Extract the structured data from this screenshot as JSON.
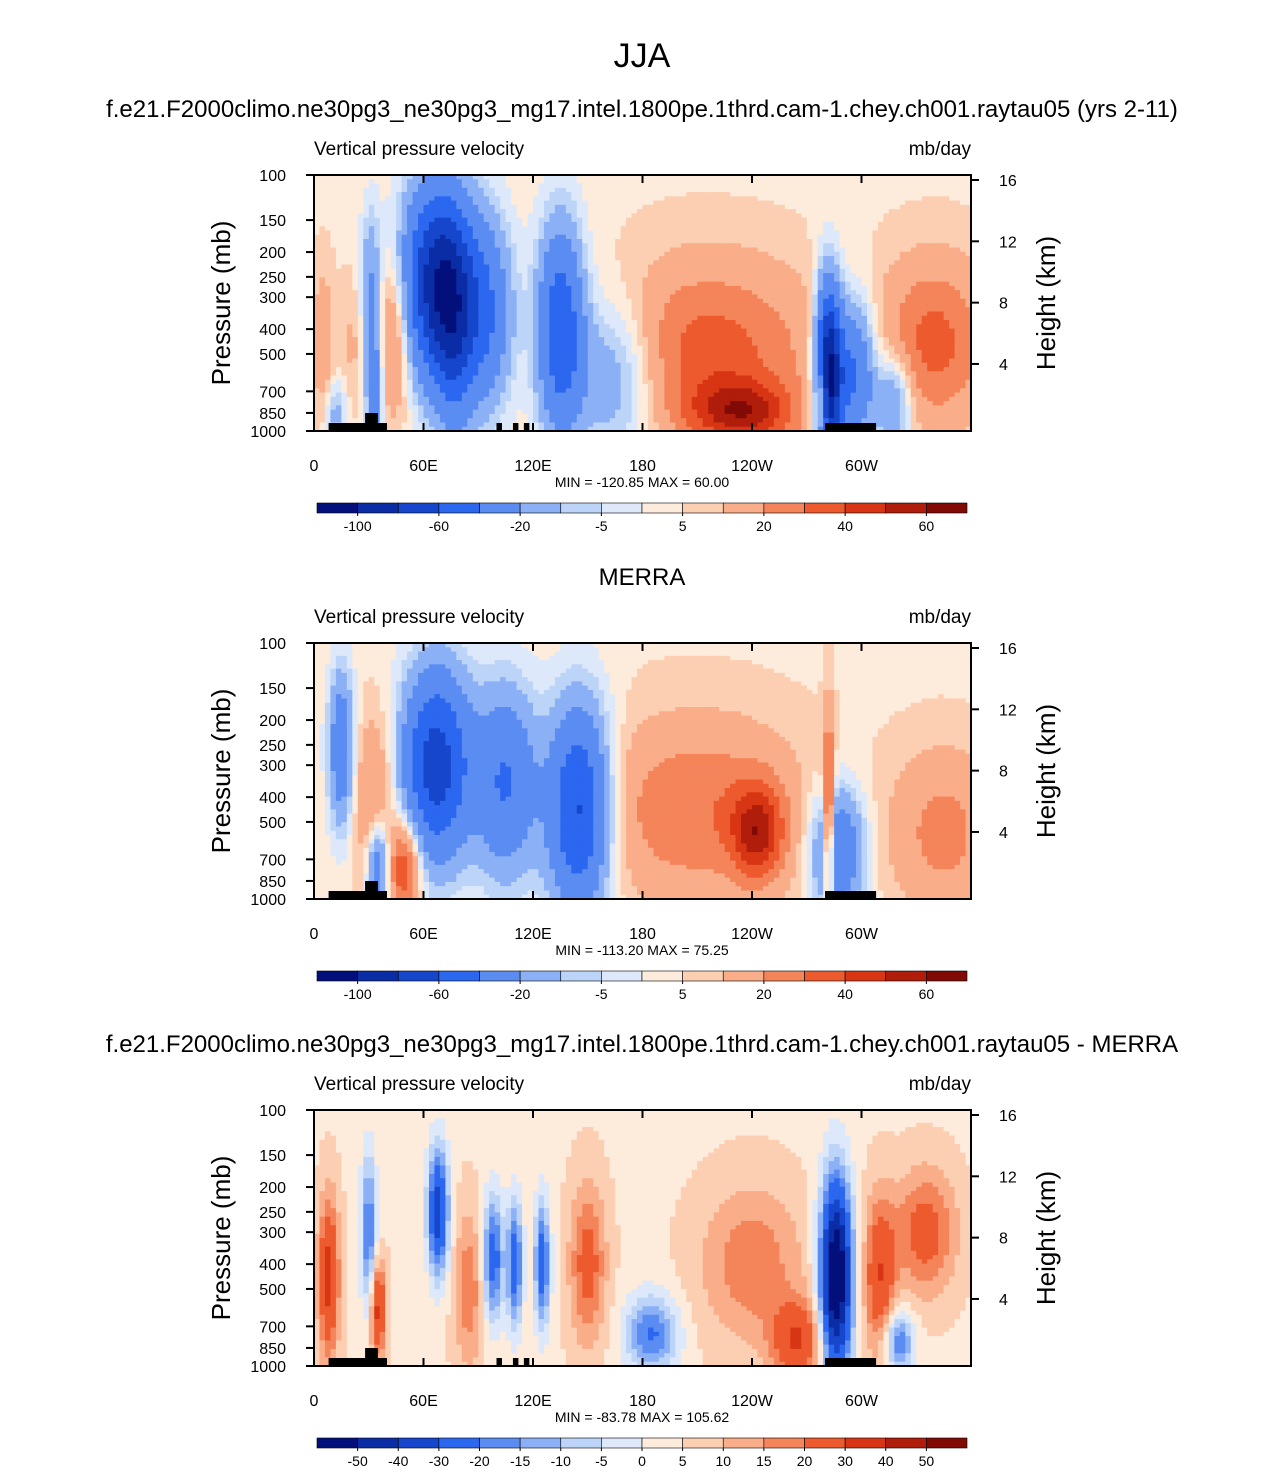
{
  "figure_title": "JJA",
  "palettes": {
    "field": [
      "#03107c",
      "#0a2da6",
      "#1646cc",
      "#2b67ef",
      "#5a8cf2",
      "#8bb0f5",
      "#bcd4f7",
      "#dde9fa",
      "#fdebdc",
      "#fccfb2",
      "#f9ad88",
      "#f48459",
      "#ec5a2e",
      "#d73514",
      "#b01d0b",
      "#810a07"
    ],
    "diff": [
      "#03107c",
      "#0a2da6",
      "#1646cc",
      "#2b67ef",
      "#5a8cf2",
      "#8bb0f5",
      "#bcd4f7",
      "#dde9fa",
      "#fdebdc",
      "#fccfb2",
      "#f9ad88",
      "#f48459",
      "#ec5a2e",
      "#d73514",
      "#b01d0b",
      "#810a07"
    ]
  },
  "chart_data": [
    {
      "type": "heatmap",
      "panel_title": "f.e21.F2000climo.ne30pg3_ne30pg3_mg17.intel.1800pe.1thrd.cam-1.chey.ch001.raytau05 (yrs 2-11)",
      "left_label": "Vertical pressure velocity",
      "right_label": "mb/day",
      "ylabel": "Pressure (mb)",
      "ylabel_right": "Height (km)",
      "xticks": [
        "0",
        "60E",
        "120E",
        "180",
        "120W",
        "60W"
      ],
      "xtick_values": [
        0,
        60,
        120,
        180,
        240,
        300
      ],
      "xlim": [
        0,
        360
      ],
      "yticks": [
        "100",
        "150",
        "200",
        "250",
        "300",
        "400",
        "500",
        "700",
        "850",
        "1000"
      ],
      "ytick_values": [
        100,
        150,
        200,
        250,
        300,
        400,
        500,
        700,
        850,
        1000
      ],
      "ylim": [
        1000,
        100
      ],
      "yscale": "log",
      "height_ticks": [
        "16",
        "12",
        "8",
        "4"
      ],
      "height_tick_values": [
        16,
        12,
        8,
        4
      ],
      "stats": "MIN = -120.85  MAX =  60.00",
      "colorbar_labels": [
        "-100",
        "-60",
        "-20",
        "-5",
        "5",
        "20",
        "40",
        "60"
      ],
      "palette": "field",
      "features": [
        {
          "lon": 5,
          "p": 450,
          "v": 14,
          "wl": 4,
          "wp": 0.45
        },
        {
          "lon": 12,
          "p": 850,
          "v": -18,
          "wl": 4,
          "wp": 0.2
        },
        {
          "lon": 22,
          "p": 450,
          "v": 8,
          "wl": 5,
          "wp": 0.4
        },
        {
          "lon": 31,
          "p": 280,
          "v": -25,
          "wl": 4,
          "wp": 0.5
        },
        {
          "lon": 33,
          "p": 700,
          "v": -40,
          "wl": 3,
          "wp": 0.35
        },
        {
          "lon": 44,
          "p": 420,
          "v": 25,
          "wl": 6,
          "wp": 0.5
        },
        {
          "lon": 68,
          "p": 260,
          "v": -95,
          "wl": 13,
          "wp": 0.6
        },
        {
          "lon": 77,
          "p": 450,
          "v": -40,
          "wl": 8,
          "wp": 0.6
        },
        {
          "lon": 95,
          "p": 350,
          "v": -40,
          "wl": 10,
          "wp": 0.6
        },
        {
          "lon": 135,
          "p": 400,
          "v": -60,
          "wl": 9,
          "wp": 0.65
        },
        {
          "lon": 165,
          "p": 600,
          "v": -30,
          "wl": 18,
          "wp": 0.5
        },
        {
          "lon": 215,
          "p": 500,
          "v": 32,
          "wl": 40,
          "wp": 0.55
        },
        {
          "lon": 235,
          "p": 850,
          "v": 40,
          "wl": 20,
          "wp": 0.2
        },
        {
          "lon": 340,
          "p": 450,
          "v": 30,
          "wl": 20,
          "wp": 0.5
        },
        {
          "lon": 282,
          "p": 600,
          "v": -110,
          "wl": 5,
          "wp": 0.55
        },
        {
          "lon": 296,
          "p": 600,
          "v": -50,
          "wl": 8,
          "wp": 0.45
        },
        {
          "lon": 318,
          "p": 750,
          "v": -30,
          "wl": 7,
          "wp": 0.3
        },
        {
          "lon": 278,
          "p": 750,
          "v": 45,
          "wl": 2,
          "wp": 0.2
        }
      ]
    },
    {
      "type": "heatmap",
      "panel_title": "MERRA",
      "left_label": "Vertical pressure velocity",
      "right_label": "mb/day",
      "ylabel": "Pressure (mb)",
      "ylabel_right": "Height (km)",
      "xticks": [
        "0",
        "60E",
        "120E",
        "180",
        "120W",
        "60W"
      ],
      "xtick_values": [
        0,
        60,
        120,
        180,
        240,
        300
      ],
      "xlim": [
        0,
        360
      ],
      "yticks": [
        "100",
        "150",
        "200",
        "250",
        "300",
        "400",
        "500",
        "700",
        "850",
        "1000"
      ],
      "ytick_values": [
        100,
        150,
        200,
        250,
        300,
        400,
        500,
        700,
        850,
        1000
      ],
      "ylim": [
        1000,
        100
      ],
      "yscale": "log",
      "height_ticks": [
        "16",
        "12",
        "8",
        "4"
      ],
      "height_tick_values": [
        16,
        12,
        8,
        4
      ],
      "stats": "MIN = -113.20  MAX =  75.25",
      "colorbar_labels": [
        "-100",
        "-60",
        "-20",
        "-5",
        "5",
        "20",
        "40",
        "60"
      ],
      "palette": "field",
      "features": [
        {
          "lon": 15,
          "p": 260,
          "v": -40,
          "wl": 5,
          "wp": 0.5
        },
        {
          "lon": 33,
          "p": 400,
          "v": 20,
          "wl": 8,
          "wp": 0.5
        },
        {
          "lon": 50,
          "p": 750,
          "v": 40,
          "wl": 6,
          "wp": 0.3
        },
        {
          "lon": 35,
          "p": 750,
          "v": -40,
          "wl": 4,
          "wp": 0.3
        },
        {
          "lon": 67,
          "p": 300,
          "v": -75,
          "wl": 13,
          "wp": 0.6
        },
        {
          "lon": 105,
          "p": 350,
          "v": -45,
          "wl": 12,
          "wp": 0.6
        },
        {
          "lon": 145,
          "p": 450,
          "v": -70,
          "wl": 12,
          "wp": 0.65
        },
        {
          "lon": 210,
          "p": 450,
          "v": 25,
          "wl": 38,
          "wp": 0.55
        },
        {
          "lon": 243,
          "p": 550,
          "v": 40,
          "wl": 10,
          "wp": 0.3
        },
        {
          "lon": 287,
          "p": 650,
          "v": -45,
          "wl": 10,
          "wp": 0.4
        },
        {
          "lon": 282,
          "p": 500,
          "v": 50,
          "wl": 2,
          "wp": 0.6
        },
        {
          "lon": 345,
          "p": 550,
          "v": 20,
          "wl": 20,
          "wp": 0.5
        }
      ]
    },
    {
      "type": "heatmap",
      "panel_title": "f.e21.F2000climo.ne30pg3_ne30pg3_mg17.intel.1800pe.1thrd.cam-1.chey.ch001.raytau05 - MERRA",
      "left_label": "Vertical pressure velocity",
      "right_label": "mb/day",
      "ylabel": "Pressure (mb)",
      "ylabel_right": "Height (km)",
      "xticks": [
        "0",
        "60E",
        "120E",
        "180",
        "120W",
        "60W"
      ],
      "xtick_values": [
        0,
        60,
        120,
        180,
        240,
        300
      ],
      "xlim": [
        0,
        360
      ],
      "yticks": [
        "100",
        "150",
        "200",
        "250",
        "300",
        "400",
        "500",
        "700",
        "850",
        "1000"
      ],
      "ytick_values": [
        100,
        150,
        200,
        250,
        300,
        400,
        500,
        700,
        850,
        1000
      ],
      "ylim": [
        1000,
        100
      ],
      "yscale": "log",
      "height_ticks": [
        "16",
        "12",
        "8",
        "4"
      ],
      "height_tick_values": [
        16,
        12,
        8,
        4
      ],
      "stats": "MIN = -83.78  MAX = 105.62",
      "colorbar_labels": [
        "-50",
        "-40",
        "-30",
        "-20",
        "-15",
        "-10",
        "-5",
        "0",
        "5",
        "10",
        "15",
        "20",
        "30",
        "40",
        "50"
      ],
      "palette": "diff",
      "features": [
        {
          "lon": 8,
          "p": 450,
          "v": 30,
          "wl": 4,
          "wp": 0.5
        },
        {
          "lon": 30,
          "p": 300,
          "v": -25,
          "wl": 3,
          "wp": 0.5
        },
        {
          "lon": 35,
          "p": 600,
          "v": 30,
          "wl": 3,
          "wp": 0.3
        },
        {
          "lon": 68,
          "p": 250,
          "v": -40,
          "wl": 4,
          "wp": 0.4
        },
        {
          "lon": 85,
          "p": 500,
          "v": 15,
          "wl": 6,
          "wp": 0.5
        },
        {
          "lon": 98,
          "p": 380,
          "v": -30,
          "wl": 4,
          "wp": 0.4
        },
        {
          "lon": 110,
          "p": 400,
          "v": -30,
          "wl": 3,
          "wp": 0.4
        },
        {
          "lon": 125,
          "p": 400,
          "v": -30,
          "wl": 3,
          "wp": 0.4
        },
        {
          "lon": 150,
          "p": 400,
          "v": 20,
          "wl": 7,
          "wp": 0.5
        },
        {
          "lon": 185,
          "p": 750,
          "v": -25,
          "wl": 10,
          "wp": 0.25
        },
        {
          "lon": 240,
          "p": 400,
          "v": 15,
          "wl": 20,
          "wp": 0.5
        },
        {
          "lon": 265,
          "p": 800,
          "v": 25,
          "wl": 10,
          "wp": 0.25
        },
        {
          "lon": 286,
          "p": 450,
          "v": -70,
          "wl": 6,
          "wp": 0.6
        },
        {
          "lon": 310,
          "p": 450,
          "v": 25,
          "wl": 6,
          "wp": 0.5
        },
        {
          "lon": 335,
          "p": 300,
          "v": 20,
          "wl": 12,
          "wp": 0.4
        },
        {
          "lon": 320,
          "p": 800,
          "v": -25,
          "wl": 6,
          "wp": 0.2
        }
      ]
    }
  ]
}
